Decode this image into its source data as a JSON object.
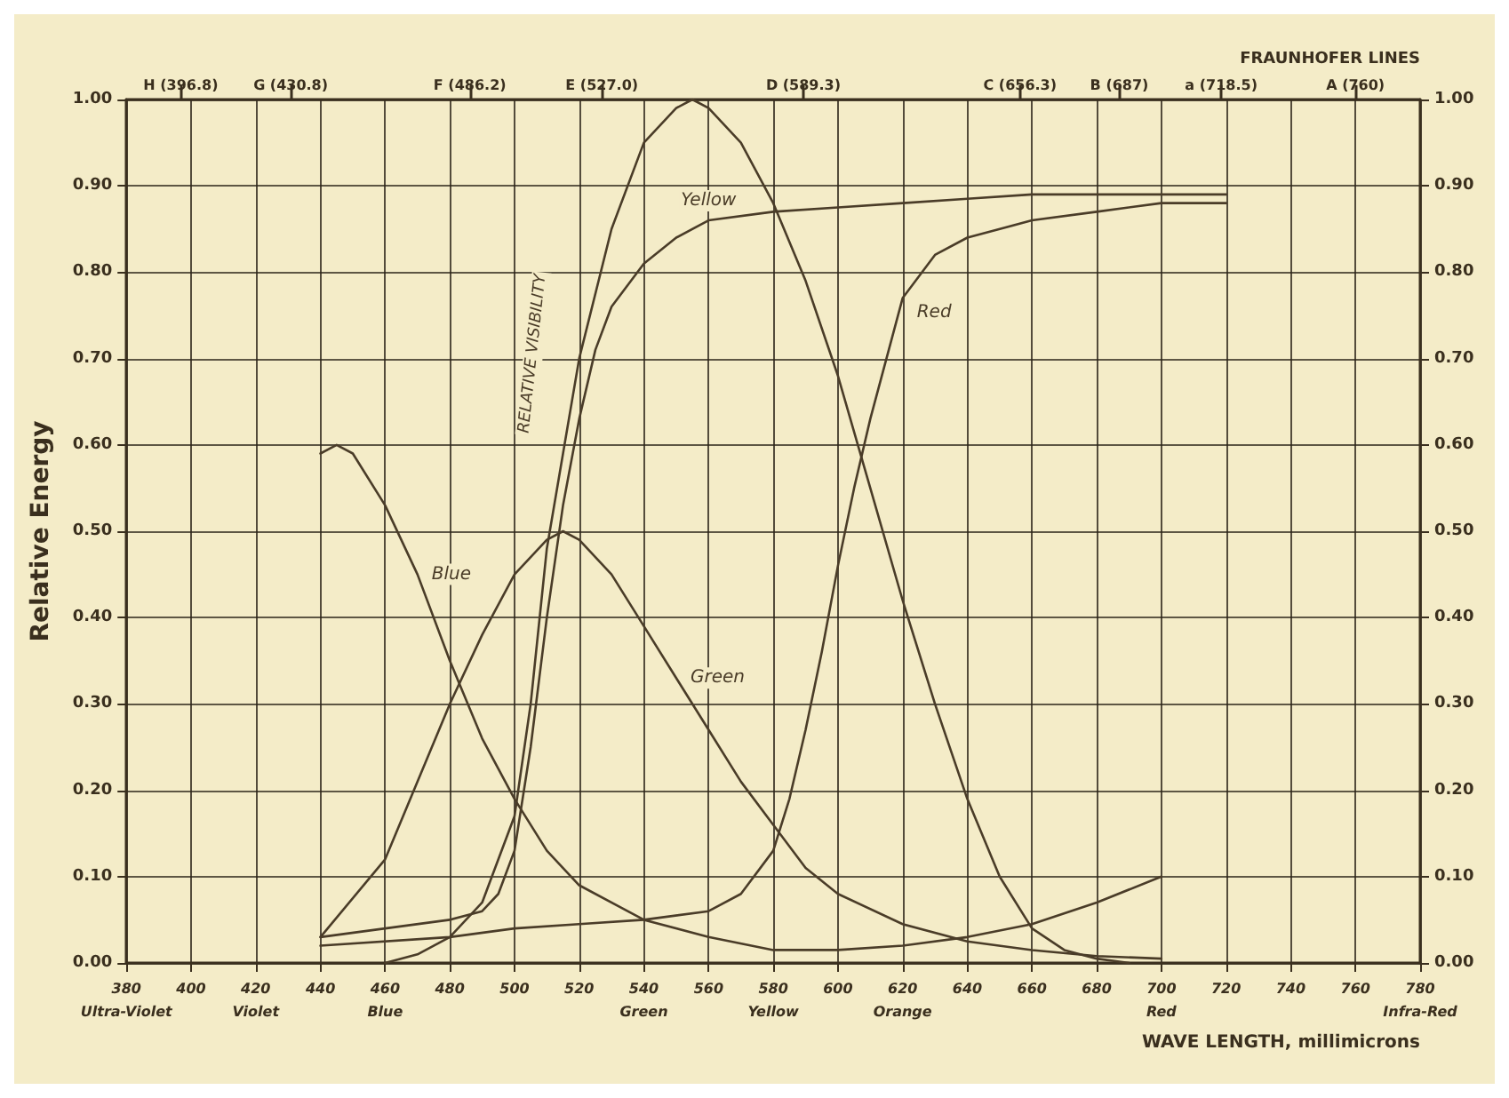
{
  "chart_data": {
    "type": "line",
    "xlabel": "WAVE LENGTH, millimicrons",
    "ylabel": "Relative Energy",
    "x2label": "FRAUNHOFER LINES",
    "xlim": [
      380,
      780
    ],
    "xticks": [
      {
        "value": 380,
        "label": "380\nUltra-Violet"
      },
      {
        "value": 400,
        "label": "400"
      },
      {
        "value": 420,
        "label": "420\nViolet"
      },
      {
        "value": 440,
        "label": "440"
      },
      {
        "value": 460,
        "label": "460\nBlue"
      },
      {
        "value": 480,
        "label": "480"
      },
      {
        "value": 500,
        "label": "500"
      },
      {
        "value": 520,
        "label": "520"
      },
      {
        "value": 540,
        "label": "540\nGreen"
      },
      {
        "value": 560,
        "label": "560"
      },
      {
        "value": 580,
        "label": "580\nYellow"
      },
      {
        "value": 600,
        "label": "600"
      },
      {
        "value": 620,
        "label": "620\nOrange"
      },
      {
        "value": 640,
        "label": "640"
      },
      {
        "value": 660,
        "label": "660"
      },
      {
        "value": 680,
        "label": "680"
      },
      {
        "value": 700,
        "label": "700\nRed"
      },
      {
        "value": 720,
        "label": "720"
      },
      {
        "value": 740,
        "label": "740"
      },
      {
        "value": 760,
        "label": "760"
      },
      {
        "value": 780,
        "label": "780\nInfra-Red"
      }
    ],
    "x2lim": [
      380,
      780
    ],
    "x2ticks": [
      {
        "value": 396.8,
        "label": "H (396.8)"
      },
      {
        "value": 430.8,
        "label": "G (430.8)"
      },
      {
        "value": 486.2,
        "label": "F (486.2)"
      },
      {
        "value": 527.0,
        "label": "E (527.0)"
      },
      {
        "value": 589.3,
        "label": "D (589.3)"
      },
      {
        "value": 656.3,
        "label": "C (656.3)"
      },
      {
        "value": 687,
        "label": "B (687)"
      },
      {
        "value": 718.5,
        "label": "a (718.5)"
      },
      {
        "value": 760,
        "label": "A (760)"
      }
    ],
    "ylim": [
      0,
      1
    ],
    "yticks": [
      {
        "value": 0,
        "label": "0.00"
      },
      {
        "value": 0.1,
        "label": "0.10"
      },
      {
        "value": 0.2,
        "label": "0.20"
      },
      {
        "value": 0.3,
        "label": "0.30"
      },
      {
        "value": 0.4,
        "label": "0.40"
      },
      {
        "value": 0.5,
        "label": "0.50"
      },
      {
        "value": 0.6,
        "label": "0.60"
      },
      {
        "value": 0.7,
        "label": "0.70"
      },
      {
        "value": 0.8,
        "label": "0.80"
      },
      {
        "value": 0.9,
        "label": "0.90"
      },
      {
        "value": 1,
        "label": "1.00"
      }
    ],
    "y2lim": [
      0,
      1
    ],
    "y2ticks": [
      {
        "value": 0,
        "label": "0.00"
      },
      {
        "value": 0.1,
        "label": "0.10"
      },
      {
        "value": 0.2,
        "label": "0.20"
      },
      {
        "value": 0.3,
        "label": "0.30"
      },
      {
        "value": 0.4,
        "label": "0.40"
      },
      {
        "value": 0.5,
        "label": "0.50"
      },
      {
        "value": 0.6,
        "label": "0.60"
      },
      {
        "value": 0.7,
        "label": "0.70"
      },
      {
        "value": 0.8,
        "label": "0.80"
      },
      {
        "value": 0.9,
        "label": "0.90"
      },
      {
        "value": 1,
        "label": "1.00"
      }
    ],
    "grid": true,
    "legend": false,
    "marker": "none",
    "line_style": "solid",
    "series": [
      {
        "name": "Blue",
        "color": "#4a3c28",
        "x": [
          440,
          445,
          450,
          460,
          470,
          480,
          490,
          500,
          510,
          520,
          540,
          560,
          580,
          600,
          620,
          640,
          660,
          680,
          700
        ],
        "values": [
          0.59,
          0.6,
          0.59,
          0.53,
          0.45,
          0.35,
          0.26,
          0.19,
          0.13,
          0.09,
          0.05,
          0.03,
          0.015,
          0.015,
          0.02,
          0.03,
          0.045,
          0.07,
          0.1
        ]
      },
      {
        "name": "Green",
        "color": "#4a3c28",
        "x": [
          440,
          460,
          480,
          490,
          500,
          510,
          515,
          520,
          530,
          540,
          550,
          560,
          570,
          580,
          590,
          600,
          620,
          640,
          660,
          680,
          700
        ],
        "values": [
          0.03,
          0.12,
          0.3,
          0.38,
          0.45,
          0.49,
          0.5,
          0.49,
          0.45,
          0.39,
          0.33,
          0.27,
          0.21,
          0.16,
          0.11,
          0.08,
          0.045,
          0.025,
          0.015,
          0.008,
          0.005
        ]
      },
      {
        "name": "RELATIVE VISIBILITY",
        "color": "#4a3c28",
        "x": [
          460,
          470,
          480,
          490,
          500,
          505,
          510,
          520,
          530,
          540,
          550,
          555,
          560,
          570,
          580,
          590,
          600,
          610,
          620,
          630,
          640,
          650,
          660,
          670,
          680,
          690
        ],
        "values": [
          0,
          0.01,
          0.03,
          0.07,
          0.17,
          0.3,
          0.48,
          0.7,
          0.85,
          0.95,
          0.99,
          1,
          0.99,
          0.95,
          0.88,
          0.79,
          0.68,
          0.55,
          0.42,
          0.3,
          0.19,
          0.1,
          0.04,
          0.015,
          0.005,
          0
        ]
      },
      {
        "name": "Yellow",
        "color": "#4a3c28",
        "x": [
          440,
          460,
          480,
          490,
          495,
          500,
          505,
          510,
          515,
          520,
          525,
          530,
          540,
          550,
          560,
          580,
          600,
          620,
          640,
          660,
          680,
          700,
          720
        ],
        "values": [
          0.03,
          0.04,
          0.05,
          0.06,
          0.08,
          0.13,
          0.25,
          0.4,
          0.53,
          0.63,
          0.71,
          0.76,
          0.81,
          0.84,
          0.86,
          0.87,
          0.875,
          0.88,
          0.885,
          0.89,
          0.89,
          0.89,
          0.89
        ]
      },
      {
        "name": "Red",
        "color": "#4a3c28",
        "x": [
          440,
          480,
          500,
          520,
          540,
          560,
          570,
          580,
          585,
          590,
          595,
          600,
          605,
          610,
          620,
          630,
          640,
          660,
          680,
          700,
          720
        ],
        "values": [
          0.02,
          0.03,
          0.04,
          0.045,
          0.05,
          0.06,
          0.08,
          0.13,
          0.19,
          0.27,
          0.36,
          0.46,
          0.55,
          0.63,
          0.77,
          0.82,
          0.84,
          0.86,
          0.87,
          0.88,
          0.88
        ]
      }
    ]
  }
}
